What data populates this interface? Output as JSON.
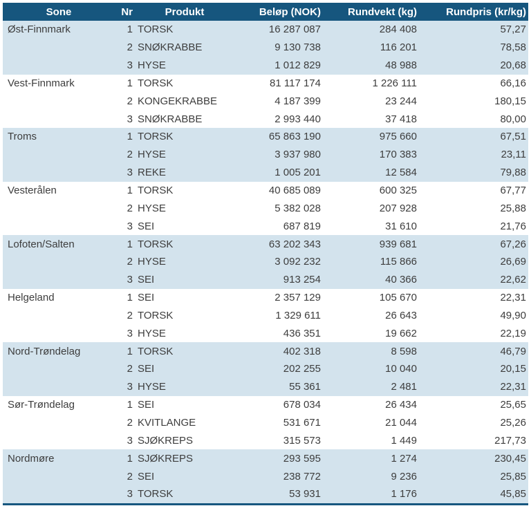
{
  "colors": {
    "header_bg": "#16567e",
    "header_text": "#ffffff",
    "row_shaded": "#d3e3ed",
    "row_plain": "#ffffff",
    "border": "#16567e",
    "text": "#3d3d3d"
  },
  "table": {
    "columns": [
      {
        "key": "sone",
        "label": "Sone"
      },
      {
        "key": "nr",
        "label": "Nr"
      },
      {
        "key": "produkt",
        "label": "Produkt"
      },
      {
        "key": "belop",
        "label": "Beløp (NOK)"
      },
      {
        "key": "rundvekt",
        "label": "Rundvekt (kg)"
      },
      {
        "key": "rundpris",
        "label": "Rundpris (kr/kg)"
      }
    ],
    "groups": [
      {
        "sone": "Øst-Finnmark",
        "shaded": true,
        "rows": [
          {
            "nr": "1",
            "produkt": "TORSK",
            "belop": "16 287 087",
            "rundvekt": "284 408",
            "rundpris": "57,27"
          },
          {
            "nr": "2",
            "produkt": "SNØKRABBE",
            "belop": "9 130 738",
            "rundvekt": "116 201",
            "rundpris": "78,58"
          },
          {
            "nr": "3",
            "produkt": "HYSE",
            "belop": "1 012 829",
            "rundvekt": "48 988",
            "rundpris": "20,68"
          }
        ]
      },
      {
        "sone": "Vest-Finnmark",
        "shaded": false,
        "rows": [
          {
            "nr": "1",
            "produkt": "TORSK",
            "belop": "81 117 174",
            "rundvekt": "1 226 111",
            "rundpris": "66,16"
          },
          {
            "nr": "2",
            "produkt": "KONGEKRABBE",
            "belop": "4 187 399",
            "rundvekt": "23 244",
            "rundpris": "180,15"
          },
          {
            "nr": "3",
            "produkt": "SNØKRABBE",
            "belop": "2 993 440",
            "rundvekt": "37 418",
            "rundpris": "80,00"
          }
        ]
      },
      {
        "sone": "Troms",
        "shaded": true,
        "rows": [
          {
            "nr": "1",
            "produkt": "TORSK",
            "belop": "65 863 190",
            "rundvekt": "975 660",
            "rundpris": "67,51"
          },
          {
            "nr": "2",
            "produkt": "HYSE",
            "belop": "3 937 980",
            "rundvekt": "170 383",
            "rundpris": "23,11"
          },
          {
            "nr": "3",
            "produkt": "REKE",
            "belop": "1 005 201",
            "rundvekt": "12 584",
            "rundpris": "79,88"
          }
        ]
      },
      {
        "sone": "Vesterålen",
        "shaded": false,
        "rows": [
          {
            "nr": "1",
            "produkt": "TORSK",
            "belop": "40 685 089",
            "rundvekt": "600 325",
            "rundpris": "67,77"
          },
          {
            "nr": "2",
            "produkt": "HYSE",
            "belop": "5 382 028",
            "rundvekt": "207 928",
            "rundpris": "25,88"
          },
          {
            "nr": "3",
            "produkt": "SEI",
            "belop": "687 819",
            "rundvekt": "31 610",
            "rundpris": "21,76"
          }
        ]
      },
      {
        "sone": "Lofoten/Salten",
        "shaded": true,
        "rows": [
          {
            "nr": "1",
            "produkt": "TORSK",
            "belop": "63 202 343",
            "rundvekt": "939 681",
            "rundpris": "67,26"
          },
          {
            "nr": "2",
            "produkt": "HYSE",
            "belop": "3 092 232",
            "rundvekt": "115 866",
            "rundpris": "26,69"
          },
          {
            "nr": "3",
            "produkt": "SEI",
            "belop": "913 254",
            "rundvekt": "40 366",
            "rundpris": "22,62"
          }
        ]
      },
      {
        "sone": "Helgeland",
        "shaded": false,
        "rows": [
          {
            "nr": "1",
            "produkt": "SEI",
            "belop": "2 357 129",
            "rundvekt": "105 670",
            "rundpris": "22,31"
          },
          {
            "nr": "2",
            "produkt": "TORSK",
            "belop": "1 329 611",
            "rundvekt": "26 643",
            "rundpris": "49,90"
          },
          {
            "nr": "3",
            "produkt": "HYSE",
            "belop": "436 351",
            "rundvekt": "19 662",
            "rundpris": "22,19"
          }
        ]
      },
      {
        "sone": "Nord-Trøndelag",
        "shaded": true,
        "rows": [
          {
            "nr": "1",
            "produkt": "TORSK",
            "belop": "402 318",
            "rundvekt": "8 598",
            "rundpris": "46,79"
          },
          {
            "nr": "2",
            "produkt": "SEI",
            "belop": "202 255",
            "rundvekt": "10 040",
            "rundpris": "20,15"
          },
          {
            "nr": "3",
            "produkt": "HYSE",
            "belop": "55 361",
            "rundvekt": "2 481",
            "rundpris": "22,31"
          }
        ]
      },
      {
        "sone": "Sør-Trøndelag",
        "shaded": false,
        "rows": [
          {
            "nr": "1",
            "produkt": "SEI",
            "belop": "678 034",
            "rundvekt": "26 434",
            "rundpris": "25,65"
          },
          {
            "nr": "2",
            "produkt": "KVITLANGE",
            "belop": "531 671",
            "rundvekt": "21 044",
            "rundpris": "25,26"
          },
          {
            "nr": "3",
            "produkt": "SJØKREPS",
            "belop": "315 573",
            "rundvekt": "1 449",
            "rundpris": "217,73"
          }
        ]
      },
      {
        "sone": "Nordmøre",
        "shaded": true,
        "rows": [
          {
            "nr": "1",
            "produkt": "SJØKREPS",
            "belop": "293 595",
            "rundvekt": "1 274",
            "rundpris": "230,45"
          },
          {
            "nr": "2",
            "produkt": "SEI",
            "belop": "238 772",
            "rundvekt": "9 236",
            "rundpris": "25,85"
          },
          {
            "nr": "3",
            "produkt": "TORSK",
            "belop": "53 931",
            "rundvekt": "1 176",
            "rundpris": "45,85"
          }
        ]
      }
    ]
  }
}
